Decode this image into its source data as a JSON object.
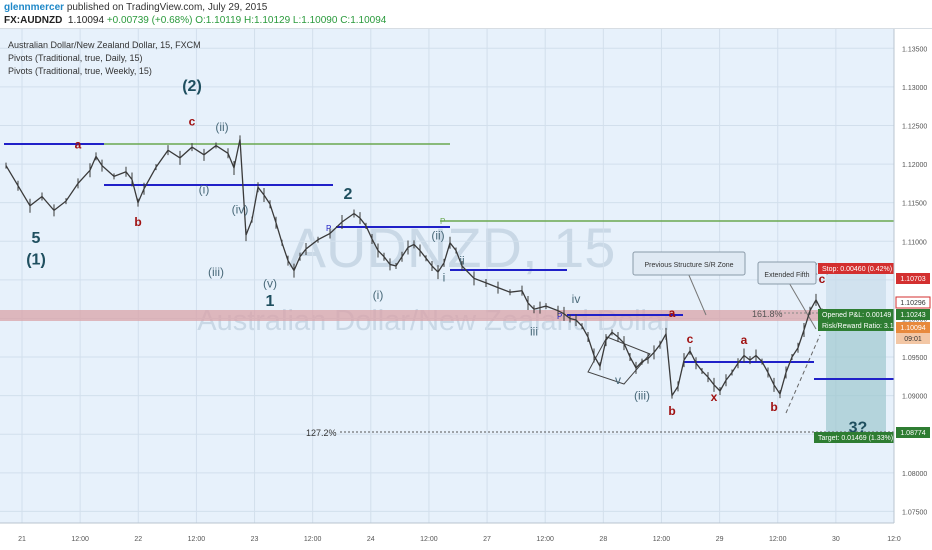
{
  "header": {
    "author": "glennmercer",
    "published": "published on TradingView.com, July 29, 2015",
    "symbol": "FX:AUDNZD",
    "last": "1.10094",
    "change": "+0.00739 (+0.68%)",
    "open": "O:1.10119",
    "high": "H:1.10129",
    "low": "L:1.10090",
    "close": "C:1.10094"
  },
  "legend": {
    "series_title": "Australian Dollar/New Zealand Dollar, 15, FXCM",
    "pivot_daily": "Pivots (Traditional, true, Daily, 15)",
    "pivot_weekly": "Pivots (Traditional, true, Weekly, 15)"
  },
  "watermark": {
    "symbol": "AUDNZD, 15",
    "name": "Australian Dollar/New Zealand Dollar"
  },
  "colors": {
    "bg": "#e7f1fb",
    "candle": "#3a3a3a",
    "pivot": "#2020c8",
    "green_line": "#6aa84f",
    "wave_primary": "#1f4f5f",
    "wave_minor": "#4a6a7a",
    "wave_red": "#a01010",
    "zone": "#d9a3a8",
    "target_box": "#9ec8cf",
    "stop_label": "#d32f2f",
    "pnl_label": "#2e7d32",
    "price_label": "#e8893c"
  },
  "chart_data": {
    "type": "line",
    "title": "Australian Dollar/New Zealand Dollar, 15, FXCM",
    "x_ticks": [
      "21",
      "12:00",
      "22",
      "12:00",
      "23",
      "12:00",
      "24",
      "12:00",
      "27",
      "12:00",
      "28",
      "12:00",
      "29",
      "12:00",
      "30",
      "12:0"
    ],
    "y_ticks": [
      "1.13500",
      "1.13000",
      "1.12500",
      "1.12000",
      "1.11500",
      "1.11000",
      "1.10500",
      "1.10000",
      "1.09500",
      "1.09000",
      "1.08500",
      "1.08000",
      "1.07500"
    ],
    "ylim": [
      1.0735,
      1.1375
    ],
    "price_path": [
      [
        0,
        1.1198
      ],
      [
        2,
        1.1172
      ],
      [
        4,
        1.1146
      ],
      [
        6,
        1.1158
      ],
      [
        8,
        1.114
      ],
      [
        10,
        1.1152
      ],
      [
        12,
        1.1175
      ],
      [
        14,
        1.1192
      ],
      [
        15,
        1.121
      ],
      [
        16,
        1.1198
      ],
      [
        18,
        1.1184
      ],
      [
        20,
        1.119
      ],
      [
        21,
        1.118
      ],
      [
        22,
        1.115
      ],
      [
        23,
        1.1168
      ],
      [
        25,
        1.1196
      ],
      [
        27,
        1.1218
      ],
      [
        29,
        1.1208
      ],
      [
        31,
        1.1222
      ],
      [
        33,
        1.1212
      ],
      [
        35,
        1.1224
      ],
      [
        37,
        1.1214
      ],
      [
        38,
        1.1195
      ],
      [
        39,
        1.1232
      ],
      [
        40,
        1.1108
      ],
      [
        41,
        1.1128
      ],
      [
        42,
        1.117
      ],
      [
        43,
        1.116
      ],
      [
        44,
        1.1148
      ],
      [
        45,
        1.1124
      ],
      [
        46,
        1.1098
      ],
      [
        47,
        1.1075
      ],
      [
        48,
        1.1062
      ],
      [
        49,
        1.108
      ],
      [
        50,
        1.109
      ],
      [
        52,
        1.1102
      ],
      [
        54,
        1.111
      ],
      [
        56,
        1.1125
      ],
      [
        58,
        1.1136
      ],
      [
        59,
        1.113
      ],
      [
        60,
        1.112
      ],
      [
        61,
        1.1103
      ],
      [
        62,
        1.1088
      ],
      [
        63,
        1.108
      ],
      [
        64,
        1.107
      ],
      [
        65,
        1.1068
      ],
      [
        66,
        1.108
      ],
      [
        67,
        1.1092
      ],
      [
        68,
        1.1096
      ],
      [
        69,
        1.1088
      ],
      [
        70,
        1.1078
      ],
      [
        71,
        1.1068
      ],
      [
        72,
        1.106
      ],
      [
        73,
        1.1072
      ],
      [
        74,
        1.1098
      ],
      [
        75,
        1.1088
      ],
      [
        76,
        1.1068
      ],
      [
        78,
        1.1052
      ],
      [
        80,
        1.1046
      ],
      [
        82,
        1.104
      ],
      [
        84,
        1.1034
      ],
      [
        86,
        1.1036
      ],
      [
        87,
        1.102
      ],
      [
        88,
        1.1012
      ],
      [
        89,
        1.1014
      ],
      [
        90,
        1.1016
      ],
      [
        92,
        1.101
      ],
      [
        93,
        1.1006
      ],
      [
        94,
        1.1
      ],
      [
        95,
        1.0998
      ],
      [
        96,
        1.099
      ],
      [
        97,
        1.0976
      ],
      [
        98,
        1.0952
      ],
      [
        99,
        1.0938
      ],
      [
        100,
        1.0972
      ],
      [
        101,
        1.0982
      ],
      [
        102,
        1.0976
      ],
      [
        103,
        1.0968
      ],
      [
        104,
        1.095
      ],
      [
        105,
        1.0936
      ],
      [
        106,
        1.0944
      ],
      [
        107,
        1.0948
      ],
      [
        108,
        1.0956
      ],
      [
        109,
        1.0966
      ],
      [
        110,
        1.098
      ],
      [
        111,
        1.09
      ],
      [
        112,
        1.0912
      ],
      [
        113,
        1.0946
      ],
      [
        114,
        1.0958
      ],
      [
        115,
        1.0942
      ],
      [
        116,
        1.0932
      ],
      [
        117,
        1.0924
      ],
      [
        118,
        1.0914
      ],
      [
        119,
        1.0906
      ],
      [
        120,
        1.092
      ],
      [
        121,
        1.093
      ],
      [
        122,
        1.0942
      ],
      [
        123,
        1.0952
      ],
      [
        124,
        1.0946
      ],
      [
        125,
        1.0952
      ],
      [
        126,
        1.0944
      ],
      [
        127,
        1.093
      ],
      [
        128,
        1.0914
      ],
      [
        129,
        1.0902
      ],
      [
        130,
        1.093
      ],
      [
        131,
        1.095
      ],
      [
        132,
        1.0962
      ],
      [
        133,
        1.0985
      ],
      [
        134,
        1.101
      ],
      [
        135,
        1.1024
      ],
      [
        136,
        1.1009
      ]
    ]
  },
  "elliott_labels": [
    {
      "text": "5",
      "t": 5,
      "p": 1.1098,
      "kind": "primary"
    },
    {
      "text": "(1)",
      "t": 5,
      "p": 1.107,
      "kind": "primary"
    },
    {
      "text": "(2)",
      "t": 31,
      "p": 1.1295,
      "kind": "primary"
    },
    {
      "text": "1",
      "t": 44,
      "p": 1.1016,
      "kind": "primary"
    },
    {
      "text": "2",
      "t": 57,
      "p": 1.1155,
      "kind": "primary"
    },
    {
      "text": "3?",
      "t": 142,
      "p": 1.0852,
      "kind": "primary"
    },
    {
      "text": "a",
      "t": 12,
      "p": 1.122,
      "kind": "red"
    },
    {
      "text": "b",
      "t": 22,
      "p": 1.112,
      "kind": "red"
    },
    {
      "text": "c",
      "t": 31,
      "p": 1.125,
      "kind": "red"
    },
    {
      "text": "a",
      "t": 111,
      "p": 1.1002,
      "kind": "red"
    },
    {
      "text": "b",
      "t": 111,
      "p": 1.0875,
      "kind": "red"
    },
    {
      "text": "c",
      "t": 114,
      "p": 1.0968,
      "kind": "red"
    },
    {
      "text": "a",
      "t": 123,
      "p": 1.0967,
      "kind": "red"
    },
    {
      "text": "x",
      "t": 118,
      "p": 1.0893,
      "kind": "red"
    },
    {
      "text": "b",
      "t": 128,
      "p": 1.088,
      "kind": "red"
    },
    {
      "text": "c",
      "t": 136,
      "p": 1.1046,
      "kind": "red"
    },
    {
      "text": "(ii)",
      "t": 36,
      "p": 1.1243,
      "kind": "minor"
    },
    {
      "text": "(i)",
      "t": 33,
      "p": 1.1162,
      "kind": "minor"
    },
    {
      "text": "(iv)",
      "t": 39,
      "p": 1.1136,
      "kind": "minor"
    },
    {
      "text": "(iii)",
      "t": 35,
      "p": 1.1055,
      "kind": "minor"
    },
    {
      "text": "(v)",
      "t": 44,
      "p": 1.104,
      "kind": "minor"
    },
    {
      "text": "(ii)",
      "t": 72,
      "p": 1.1102,
      "kind": "minor"
    },
    {
      "text": "(i)",
      "t": 62,
      "p": 1.1025,
      "kind": "minor"
    },
    {
      "text": "ii",
      "t": 76,
      "p": 1.107,
      "kind": "minor"
    },
    {
      "text": "i",
      "t": 73,
      "p": 1.1048,
      "kind": "minor"
    },
    {
      "text": "iii",
      "t": 88,
      "p": 1.0978,
      "kind": "minor"
    },
    {
      "text": "iv",
      "t": 95,
      "p": 1.102,
      "kind": "minor"
    },
    {
      "text": "v",
      "t": 102,
      "p": 1.0915,
      "kind": "minor"
    },
    {
      "text": "(iii)",
      "t": 106,
      "p": 1.0895,
      "kind": "minor"
    },
    {
      "text": "(iv)",
      "t": 136,
      "p": 1.106,
      "kind": "minor"
    }
  ],
  "annotations": {
    "fib_161": "161.8%",
    "fib_127": "127.2%",
    "callout_structure": "Previous Structure S/R Zone",
    "callout_fifth": "Extended Fifth"
  },
  "price_axis_labels": {
    "stop": "Stop: 0.00460 (0.42%)",
    "stop_price": "1.10703",
    "level_1": "1.10296",
    "pnl": "Opened P&L: 0.00149",
    "rr": "Risk/Reward Ratio: 3.19",
    "level_2": "1.10243",
    "current": "1.10094",
    "countdown": "09:01",
    "target": "Target: 0.01469 (1.33%)",
    "target_price": "1.08774"
  },
  "pivot_markers": {
    "p1": "P",
    "p2": "P",
    "p3": "P"
  }
}
